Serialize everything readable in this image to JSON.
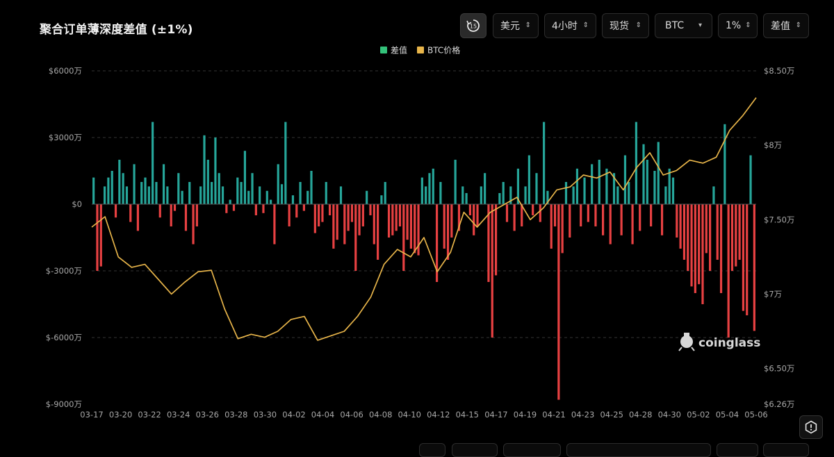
{
  "header": {
    "title": "聚合订单薄深度差值 (±1%)"
  },
  "toolbar": {
    "replay_icon_text": "15",
    "currency": "美元",
    "interval": "4小时",
    "market": "现货",
    "symbol": "BTC",
    "depth": "1%",
    "metric": "差值"
  },
  "watermark": {
    "text": "coinglass"
  },
  "colors": {
    "positive": "#26a69a",
    "negative": "#e84142",
    "price": "#e8b54a",
    "legend_diff": "#33c27a",
    "legend_price": "#e8b54a",
    "grid": "#333333",
    "axis_text": "#a8a8a8"
  },
  "chart_data": {
    "type": "bar",
    "legend": [
      {
        "name": "差值",
        "color": "#33c27a"
      },
      {
        "name": "BTC价格",
        "color": "#e8b54a"
      }
    ],
    "legend_position": "top-center",
    "grid": true,
    "x_tick_labels": [
      "03-17",
      "03-20",
      "03-22",
      "03-24",
      "03-26",
      "03-28",
      "03-30",
      "04-02",
      "04-04",
      "04-06",
      "04-08",
      "04-10",
      "04-12",
      "04-15",
      "04-17",
      "04-19",
      "04-21",
      "04-23",
      "04-25",
      "04-28",
      "04-30",
      "05-02",
      "05-04",
      "05-06"
    ],
    "y_left": {
      "ylim": [
        -90000000,
        60000000
      ],
      "ticks": [
        60000000,
        30000000,
        0,
        -30000000,
        -60000000,
        -90000000
      ],
      "tick_labels": [
        "$6000万",
        "$3000万",
        "$0",
        "$-3000万",
        "$-6000万",
        "$-9000万"
      ]
    },
    "y_right": {
      "ylim": [
        62600,
        85000
      ],
      "ticks": [
        85000,
        80000,
        75000,
        70000,
        65000,
        62600
      ],
      "tick_labels": [
        "$8.50万",
        "$8万",
        "$7.50万",
        "$7万",
        "$6.50万",
        "$6.26万"
      ]
    },
    "series": [
      {
        "name": "差值",
        "type": "bar",
        "x_range": [
          "03-17",
          "05-06"
        ],
        "anchors": [
          [
            0,
            12
          ],
          [
            1,
            -30
          ],
          [
            2,
            -28
          ],
          [
            3,
            8
          ],
          [
            4,
            12
          ],
          [
            5,
            15
          ],
          [
            6,
            -6
          ],
          [
            7,
            20
          ],
          [
            8,
            14
          ],
          [
            9,
            8
          ],
          [
            10,
            -8
          ],
          [
            11,
            18
          ],
          [
            12,
            -12
          ],
          [
            13,
            10
          ],
          [
            14,
            12
          ],
          [
            15,
            8
          ],
          [
            16,
            37
          ],
          [
            17,
            10
          ],
          [
            18,
            -6
          ],
          [
            19,
            18
          ],
          [
            20,
            8
          ],
          [
            21,
            -10
          ],
          [
            22,
            -3
          ],
          [
            23,
            14
          ],
          [
            24,
            6
          ],
          [
            25,
            -12
          ],
          [
            26,
            10
          ],
          [
            27,
            -18
          ],
          [
            28,
            -10
          ],
          [
            29,
            8
          ],
          [
            30,
            31
          ],
          [
            31,
            20
          ],
          [
            32,
            10
          ],
          [
            33,
            30
          ],
          [
            34,
            14
          ],
          [
            35,
            8
          ],
          [
            36,
            -4
          ],
          [
            37,
            2
          ],
          [
            38,
            -3
          ],
          [
            39,
            12
          ],
          [
            40,
            10
          ],
          [
            41,
            24
          ],
          [
            42,
            6
          ],
          [
            43,
            14
          ],
          [
            44,
            -5
          ],
          [
            45,
            8
          ],
          [
            46,
            -4
          ],
          [
            47,
            6
          ],
          [
            48,
            2
          ],
          [
            49,
            -18
          ],
          [
            50,
            18
          ],
          [
            51,
            9
          ],
          [
            52,
            37
          ],
          [
            53,
            -10
          ],
          [
            54,
            4
          ],
          [
            55,
            -6
          ],
          [
            56,
            10
          ],
          [
            57,
            -3
          ],
          [
            58,
            6
          ],
          [
            59,
            15
          ],
          [
            60,
            -13
          ],
          [
            61,
            -10
          ],
          [
            62,
            -8
          ],
          [
            63,
            10
          ],
          [
            64,
            -5
          ],
          [
            65,
            -20
          ],
          [
            66,
            -16
          ],
          [
            67,
            8
          ],
          [
            68,
            -18
          ],
          [
            69,
            -12
          ],
          [
            70,
            -8
          ],
          [
            71,
            -30
          ],
          [
            72,
            -14
          ],
          [
            73,
            -10
          ],
          [
            74,
            6
          ],
          [
            75,
            -5
          ],
          [
            76,
            -18
          ],
          [
            77,
            -25
          ],
          [
            78,
            4
          ],
          [
            79,
            10
          ],
          [
            80,
            -15
          ],
          [
            81,
            -14
          ],
          [
            82,
            -12
          ],
          [
            83,
            -10
          ],
          [
            84,
            -30
          ],
          [
            85,
            -16
          ],
          [
            86,
            -20
          ],
          [
            87,
            -22
          ],
          [
            88,
            -23
          ],
          [
            89,
            12
          ],
          [
            90,
            8
          ],
          [
            91,
            14
          ],
          [
            92,
            16
          ],
          [
            93,
            -35
          ],
          [
            94,
            10
          ],
          [
            95,
            -20
          ],
          [
            96,
            -25
          ],
          [
            97,
            -15
          ],
          [
            98,
            20
          ],
          [
            99,
            -12
          ],
          [
            100,
            8
          ],
          [
            101,
            5
          ],
          [
            102,
            -5
          ],
          [
            103,
            -14
          ],
          [
            104,
            -10
          ],
          [
            105,
            8
          ],
          [
            106,
            14
          ],
          [
            107,
            -35
          ],
          [
            108,
            -60
          ],
          [
            109,
            -32
          ],
          [
            110,
            5
          ],
          [
            111,
            10
          ],
          [
            112,
            -8
          ],
          [
            113,
            8
          ],
          [
            114,
            -12
          ],
          [
            115,
            16
          ],
          [
            116,
            -10
          ],
          [
            117,
            8
          ],
          [
            118,
            22
          ],
          [
            119,
            -5
          ],
          [
            120,
            14
          ],
          [
            121,
            -8
          ],
          [
            122,
            37
          ],
          [
            123,
            6
          ],
          [
            124,
            -20
          ],
          [
            125,
            -10
          ],
          [
            126,
            -88
          ],
          [
            127,
            -22
          ],
          [
            128,
            10
          ],
          [
            129,
            -15
          ],
          [
            130,
            8
          ],
          [
            131,
            16
          ],
          [
            132,
            -10
          ],
          [
            133,
            12
          ],
          [
            134,
            -8
          ],
          [
            135,
            18
          ],
          [
            136,
            -10
          ],
          [
            137,
            20
          ],
          [
            138,
            -14
          ],
          [
            139,
            16
          ],
          [
            140,
            -18
          ],
          [
            141,
            14
          ],
          [
            142,
            8
          ],
          [
            143,
            -14
          ],
          [
            144,
            22
          ],
          [
            145,
            10
          ],
          [
            146,
            -18
          ],
          [
            147,
            37
          ],
          [
            148,
            -12
          ],
          [
            149,
            27
          ],
          [
            150,
            20
          ],
          [
            151,
            -10
          ],
          [
            152,
            15
          ],
          [
            153,
            28
          ],
          [
            154,
            -14
          ],
          [
            155,
            8
          ],
          [
            156,
            16
          ],
          [
            157,
            12
          ],
          [
            158,
            -15
          ],
          [
            159,
            -20
          ],
          [
            160,
            -25
          ],
          [
            161,
            -30
          ],
          [
            162,
            -37
          ],
          [
            163,
            -40
          ],
          [
            164,
            -36
          ],
          [
            165,
            -45
          ],
          [
            166,
            -22
          ],
          [
            167,
            -30
          ],
          [
            168,
            8
          ],
          [
            169,
            -25
          ],
          [
            170,
            -40
          ],
          [
            171,
            36
          ],
          [
            172,
            -60
          ],
          [
            173,
            -30
          ],
          [
            174,
            -28
          ],
          [
            175,
            -25
          ],
          [
            176,
            -48
          ],
          [
            177,
            -50
          ],
          [
            178,
            22
          ],
          [
            179,
            -57
          ]
        ],
        "unit": "万美元 (×10000 USD)",
        "n_bars": 180
      },
      {
        "name": "BTC价格",
        "type": "line",
        "x": [
          "03-17",
          "03-18",
          "03-19",
          "03-20",
          "03-21",
          "03-22",
          "03-23",
          "03-24",
          "03-25",
          "03-26",
          "03-27",
          "03-28",
          "03-29",
          "03-30",
          "03-31",
          "04-01",
          "04-02",
          "04-03",
          "04-04",
          "04-05",
          "04-06",
          "04-07",
          "04-08",
          "04-09",
          "04-10",
          "04-11",
          "04-12",
          "04-13",
          "04-14",
          "04-15",
          "04-16",
          "04-17",
          "04-18",
          "04-19",
          "04-20",
          "04-21",
          "04-22",
          "04-23",
          "04-24",
          "04-25",
          "04-26",
          "04-27",
          "04-28",
          "04-29",
          "04-30",
          "05-01",
          "05-02",
          "05-03",
          "05-04",
          "05-05",
          "05-06"
        ],
        "values": [
          74500,
          75200,
          72500,
          71800,
          72000,
          71000,
          70000,
          70800,
          71500,
          71600,
          69000,
          67000,
          67300,
          67100,
          67500,
          68300,
          68500,
          66900,
          67200,
          67500,
          68500,
          69800,
          72000,
          73000,
          72500,
          73800,
          71500,
          72800,
          75500,
          74500,
          75500,
          76000,
          76500,
          75000,
          75800,
          77000,
          77200,
          78000,
          77800,
          78200,
          77000,
          78500,
          79500,
          78000,
          78300,
          79000,
          78800,
          79200,
          81000,
          82000,
          83200
        ]
      }
    ]
  }
}
